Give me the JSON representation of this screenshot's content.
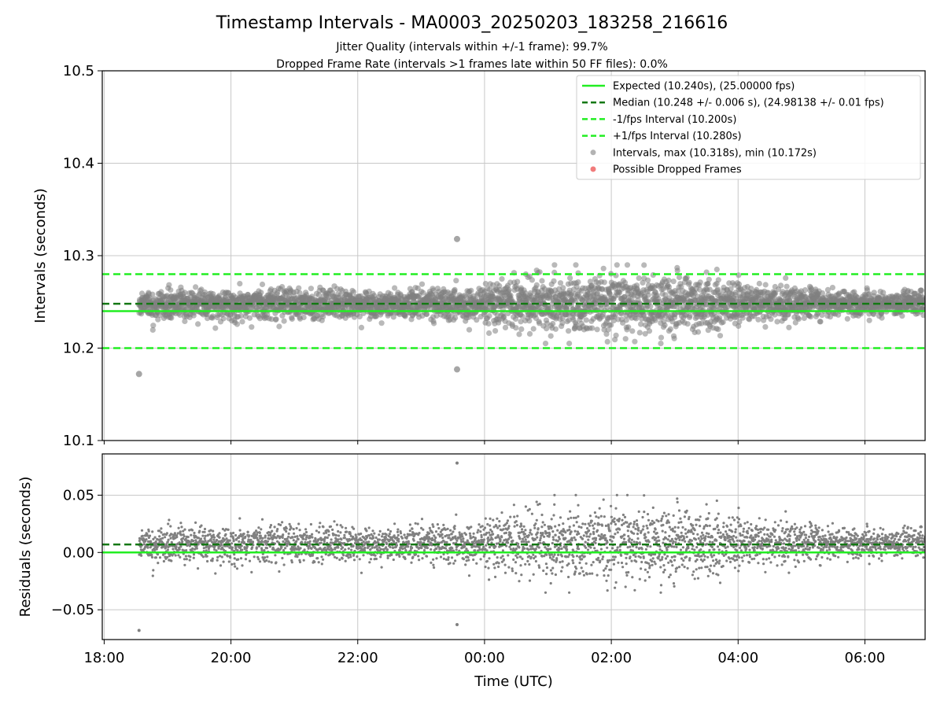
{
  "title": "Timestamp Intervals - MA0003_20250203_183258_216616",
  "subtitle1": "Jitter Quality (intervals within +/-1 frame): 99.7%",
  "subtitle2": "Dropped Frame Rate (intervals >1 frames late within 50 FF files): 0.0%",
  "colors": {
    "expected": "#22ee22",
    "median": "#147814",
    "interval_band": "#22ee22",
    "points": "#808080",
    "dropped": "#ee5a5a",
    "grid": "#c8c8c8",
    "axis": "#000000"
  },
  "legend": {
    "placement": "top-right",
    "items": [
      {
        "label": "Expected (10.240s), (25.00000 fps)",
        "kind": "solid",
        "color": "#22ee22"
      },
      {
        "label": "Median (10.248 +/- 0.006 s), (24.98138 +/- 0.01 fps)",
        "kind": "dashed",
        "color": "#147814"
      },
      {
        "label": "-1/fps Interval (10.200s)",
        "kind": "dashed",
        "color": "#22ee22"
      },
      {
        "label": "+1/fps Interval (10.280s)",
        "kind": "dashed",
        "color": "#22ee22"
      },
      {
        "label": "Intervals, max (10.318s), min (10.172s)",
        "kind": "dot",
        "color": "#a0a0a0"
      },
      {
        "label": "Possible Dropped Frames",
        "kind": "dot",
        "color": "#ee5a5a"
      }
    ]
  },
  "chart_data": [
    {
      "type": "scatter",
      "ylabel": "Intervals (seconds)",
      "ylim": [
        10.1,
        10.5
      ],
      "yticks": [
        "10.1",
        "10.2",
        "10.3",
        "10.4",
        "10.5"
      ],
      "grid": true,
      "reference_lines": {
        "expected": 10.24,
        "median": 10.248,
        "minus_1fps": 10.2,
        "plus_1fps": 10.28
      },
      "x_range_hours": [
        17.97,
        30.95
      ],
      "data_x_range_hours": [
        18.55,
        30.95
      ],
      "summary": {
        "max": 10.318,
        "min": 10.172,
        "median": 10.248,
        "median_std": 0.006
      },
      "notable_points": [
        {
          "time": "18:33",
          "interval": 10.172
        },
        {
          "time": "23:34",
          "interval": 10.318
        },
        {
          "time": "23:34",
          "interval": 10.177
        }
      ]
    },
    {
      "type": "scatter",
      "ylabel": "Residuals (seconds)",
      "xlabel": "Time (UTC)",
      "ylim": [
        -0.076,
        0.086
      ],
      "yticks": [
        "0.05",
        "0.00",
        "−0.05"
      ],
      "xticks": [
        "18:00",
        "20:00",
        "22:00",
        "00:00",
        "02:00",
        "04:00",
        "06:00"
      ],
      "grid": true,
      "reference_lines": {
        "zero": 0.0,
        "median_offset": 0.007
      },
      "notable_points": [
        {
          "time": "18:33",
          "residual": -0.068
        },
        {
          "time": "23:34",
          "residual": 0.078
        },
        {
          "time": "23:34",
          "residual": -0.063
        }
      ]
    }
  ]
}
